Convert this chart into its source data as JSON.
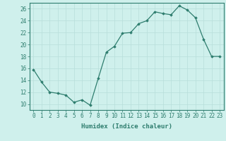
{
  "x": [
    0,
    1,
    2,
    3,
    4,
    5,
    6,
    7,
    8,
    9,
    10,
    11,
    12,
    13,
    14,
    15,
    16,
    17,
    18,
    19,
    20,
    21,
    22,
    23
  ],
  "y": [
    15.8,
    13.7,
    12.0,
    11.8,
    11.5,
    10.3,
    10.7,
    9.8,
    14.3,
    18.7,
    19.7,
    21.9,
    22.0,
    23.5,
    24.0,
    25.5,
    25.2,
    25.0,
    26.5,
    25.8,
    24.5,
    20.9,
    18.0,
    18.0
  ],
  "xlim": [
    -0.5,
    23.5
  ],
  "ylim": [
    9,
    27
  ],
  "yticks": [
    10,
    12,
    14,
    16,
    18,
    20,
    22,
    24,
    26
  ],
  "xticks": [
    0,
    1,
    2,
    3,
    4,
    5,
    6,
    7,
    8,
    9,
    10,
    11,
    12,
    13,
    14,
    15,
    16,
    17,
    18,
    19,
    20,
    21,
    22,
    23
  ],
  "xlabel": "Humidex (Indice chaleur)",
  "line_color": "#2e7d6e",
  "marker": "D",
  "marker_size": 1.8,
  "bg_color": "#cff0ec",
  "grid_color": "#b8deda",
  "axis_color": "#2e7d6e",
  "tick_color": "#2e7d6e",
  "label_fontsize": 6.5,
  "tick_fontsize": 5.5,
  "linewidth": 0.9
}
